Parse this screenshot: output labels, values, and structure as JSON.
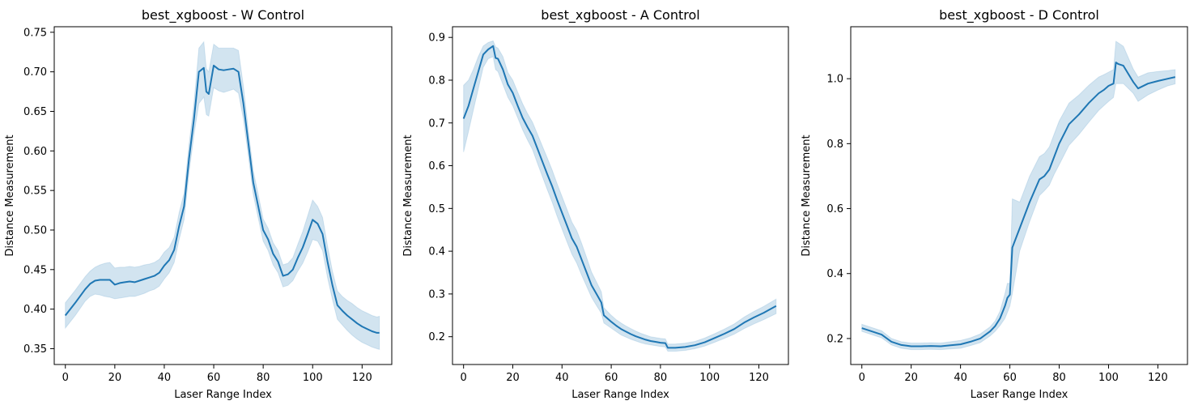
{
  "colors": {
    "line": "#1f77b4",
    "band": "#1f77b4"
  },
  "chart_data": [
    {
      "type": "line",
      "title": "best_xgboost - W Control",
      "xlabel": "Laser Range Index",
      "ylabel": "Distance Measurement",
      "xlim": [
        -4.5,
        132
      ],
      "ylim": [
        0.33,
        0.757
      ],
      "xticks": [
        0,
        20,
        40,
        60,
        80,
        100,
        120
      ],
      "yticks": [
        0.35,
        0.4,
        0.45,
        0.5,
        0.55,
        0.6,
        0.65,
        0.7,
        0.75
      ],
      "ytick_labels": [
        "0.35",
        "0.40",
        "0.45",
        "0.50",
        "0.55",
        "0.60",
        "0.65",
        "0.70",
        "0.75"
      ],
      "series": [
        {
          "x": [
            0,
            4,
            8,
            10,
            12,
            14,
            16,
            18,
            20,
            22,
            24,
            26,
            28,
            30,
            32,
            34,
            36,
            38,
            40,
            42,
            44,
            46,
            48,
            50,
            52,
            54,
            56,
            57,
            58,
            60,
            62,
            64,
            66,
            68,
            70,
            72,
            74,
            76,
            78,
            80,
            82,
            84,
            86,
            88,
            90,
            92,
            94,
            96,
            98,
            100,
            102,
            104,
            106,
            108,
            110,
            112,
            114,
            116,
            118,
            120,
            122,
            124,
            126,
            127
          ],
          "y": [
            0.392,
            0.408,
            0.425,
            0.432,
            0.436,
            0.437,
            0.437,
            0.437,
            0.431,
            0.433,
            0.434,
            0.435,
            0.434,
            0.436,
            0.438,
            0.44,
            0.442,
            0.446,
            0.455,
            0.462,
            0.475,
            0.505,
            0.53,
            0.59,
            0.64,
            0.7,
            0.705,
            0.675,
            0.672,
            0.708,
            0.703,
            0.702,
            0.703,
            0.704,
            0.7,
            0.66,
            0.61,
            0.56,
            0.53,
            0.5,
            0.488,
            0.47,
            0.46,
            0.442,
            0.444,
            0.45,
            0.465,
            0.478,
            0.495,
            0.513,
            0.508,
            0.495,
            0.46,
            0.43,
            0.405,
            0.398,
            0.392,
            0.387,
            0.382,
            0.378,
            0.375,
            0.372,
            0.37,
            0.37
          ],
          "lower": [
            0.376,
            0.392,
            0.41,
            0.416,
            0.419,
            0.418,
            0.416,
            0.415,
            0.413,
            0.414,
            0.415,
            0.416,
            0.416,
            0.418,
            0.42,
            0.423,
            0.425,
            0.429,
            0.438,
            0.446,
            0.459,
            0.488,
            0.513,
            0.572,
            0.62,
            0.66,
            0.668,
            0.646,
            0.644,
            0.68,
            0.676,
            0.674,
            0.676,
            0.678,
            0.673,
            0.64,
            0.594,
            0.545,
            0.515,
            0.486,
            0.474,
            0.456,
            0.446,
            0.428,
            0.43,
            0.436,
            0.448,
            0.458,
            0.472,
            0.488,
            0.486,
            0.474,
            0.44,
            0.412,
            0.387,
            0.38,
            0.373,
            0.367,
            0.362,
            0.358,
            0.355,
            0.352,
            0.35,
            0.349
          ],
          "upper": [
            0.408,
            0.424,
            0.441,
            0.448,
            0.453,
            0.456,
            0.458,
            0.459,
            0.452,
            0.453,
            0.453,
            0.454,
            0.453,
            0.454,
            0.456,
            0.457,
            0.459,
            0.463,
            0.472,
            0.478,
            0.491,
            0.522,
            0.547,
            0.608,
            0.66,
            0.73,
            0.738,
            0.704,
            0.7,
            0.735,
            0.73,
            0.73,
            0.73,
            0.73,
            0.727,
            0.682,
            0.626,
            0.575,
            0.545,
            0.514,
            0.502,
            0.484,
            0.474,
            0.456,
            0.458,
            0.465,
            0.482,
            0.498,
            0.518,
            0.538,
            0.53,
            0.516,
            0.48,
            0.448,
            0.423,
            0.416,
            0.411,
            0.407,
            0.402,
            0.398,
            0.395,
            0.392,
            0.39,
            0.391
          ]
        }
      ]
    },
    {
      "type": "line",
      "title": "best_xgboost - A Control",
      "xlabel": "Laser Range Index",
      "ylabel": "Distance Measurement",
      "xlim": [
        -4.5,
        132
      ],
      "ylim": [
        0.135,
        0.925
      ],
      "xticks": [
        0,
        20,
        40,
        60,
        80,
        100,
        120
      ],
      "yticks": [
        0.2,
        0.3,
        0.4,
        0.5,
        0.6,
        0.7,
        0.8,
        0.9
      ],
      "ytick_labels": [
        "0.2",
        "0.3",
        "0.4",
        "0.5",
        "0.6",
        "0.7",
        "0.8",
        "0.9"
      ],
      "series": [
        {
          "x": [
            0,
            2,
            4,
            6,
            8,
            10,
            12,
            13,
            14,
            16,
            18,
            20,
            22,
            24,
            26,
            28,
            30,
            32,
            34,
            36,
            38,
            40,
            42,
            44,
            46,
            48,
            50,
            52,
            54,
            56,
            57,
            58,
            60,
            62,
            64,
            66,
            68,
            70,
            72,
            74,
            76,
            78,
            80,
            82,
            83,
            86,
            90,
            94,
            98,
            102,
            106,
            110,
            114,
            118,
            122,
            127
          ],
          "y": [
            0.71,
            0.74,
            0.78,
            0.82,
            0.86,
            0.872,
            0.88,
            0.852,
            0.85,
            0.825,
            0.79,
            0.77,
            0.74,
            0.712,
            0.69,
            0.67,
            0.64,
            0.61,
            0.58,
            0.552,
            0.52,
            0.49,
            0.46,
            0.43,
            0.41,
            0.38,
            0.35,
            0.32,
            0.3,
            0.28,
            0.25,
            0.245,
            0.235,
            0.226,
            0.218,
            0.212,
            0.206,
            0.201,
            0.197,
            0.193,
            0.19,
            0.188,
            0.186,
            0.185,
            0.174,
            0.174,
            0.176,
            0.18,
            0.187,
            0.197,
            0.207,
            0.218,
            0.233,
            0.245,
            0.256,
            0.272
          ],
          "lower": [
            0.632,
            0.68,
            0.73,
            0.78,
            0.83,
            0.85,
            0.855,
            0.825,
            0.82,
            0.79,
            0.76,
            0.74,
            0.712,
            0.684,
            0.66,
            0.638,
            0.606,
            0.575,
            0.544,
            0.515,
            0.482,
            0.452,
            0.422,
            0.393,
            0.372,
            0.344,
            0.318,
            0.292,
            0.273,
            0.255,
            0.232,
            0.228,
            0.22,
            0.212,
            0.204,
            0.199,
            0.194,
            0.19,
            0.186,
            0.183,
            0.181,
            0.179,
            0.177,
            0.176,
            0.166,
            0.166,
            0.168,
            0.172,
            0.178,
            0.187,
            0.196,
            0.206,
            0.219,
            0.23,
            0.24,
            0.254
          ],
          "upper": [
            0.788,
            0.8,
            0.825,
            0.855,
            0.88,
            0.888,
            0.892,
            0.878,
            0.875,
            0.855,
            0.818,
            0.8,
            0.772,
            0.745,
            0.722,
            0.702,
            0.674,
            0.646,
            0.618,
            0.59,
            0.558,
            0.528,
            0.498,
            0.468,
            0.448,
            0.418,
            0.385,
            0.351,
            0.328,
            0.305,
            0.268,
            0.262,
            0.25,
            0.24,
            0.232,
            0.225,
            0.219,
            0.213,
            0.208,
            0.204,
            0.2,
            0.198,
            0.196,
            0.195,
            0.183,
            0.183,
            0.185,
            0.189,
            0.197,
            0.207,
            0.218,
            0.23,
            0.246,
            0.259,
            0.271,
            0.288
          ]
        }
      ]
    },
    {
      "type": "line",
      "title": "best_xgboost - D Control",
      "xlabel": "Laser Range Index",
      "ylabel": "Distance Measurement",
      "xlim": [
        -4.5,
        132
      ],
      "ylim": [
        0.12,
        1.16
      ],
      "xticks": [
        0,
        20,
        40,
        60,
        80,
        100,
        120
      ],
      "yticks": [
        0.2,
        0.4,
        0.6,
        0.8,
        1.0
      ],
      "ytick_labels": [
        "0.2",
        "0.4",
        "0.6",
        "0.8",
        "1.0"
      ],
      "series": [
        {
          "x": [
            0,
            4,
            8,
            12,
            16,
            20,
            24,
            28,
            32,
            36,
            40,
            44,
            48,
            52,
            54,
            56,
            58,
            59,
            60,
            61,
            64,
            68,
            72,
            74,
            76,
            78,
            80,
            84,
            88,
            92,
            96,
            98,
            100,
            102,
            103,
            104,
            106,
            110,
            112,
            116,
            120,
            124,
            127
          ],
          "y": [
            0.232,
            0.222,
            0.212,
            0.19,
            0.18,
            0.176,
            0.176,
            0.177,
            0.176,
            0.179,
            0.182,
            0.19,
            0.2,
            0.222,
            0.238,
            0.262,
            0.3,
            0.325,
            0.335,
            0.48,
            0.54,
            0.62,
            0.69,
            0.7,
            0.72,
            0.76,
            0.8,
            0.86,
            0.89,
            0.925,
            0.955,
            0.965,
            0.978,
            0.985,
            1.05,
            1.045,
            1.04,
            0.99,
            0.97,
            0.985,
            0.993,
            1.0,
            1.005
          ],
          "lower": [
            0.222,
            0.212,
            0.202,
            0.18,
            0.17,
            0.166,
            0.166,
            0.167,
            0.166,
            0.168,
            0.17,
            0.178,
            0.187,
            0.208,
            0.222,
            0.24,
            0.262,
            0.28,
            0.3,
            0.338,
            0.47,
            0.56,
            0.64,
            0.655,
            0.672,
            0.706,
            0.735,
            0.795,
            0.828,
            0.866,
            0.902,
            0.916,
            0.93,
            0.942,
            0.985,
            0.985,
            0.985,
            0.955,
            0.93,
            0.95,
            0.965,
            0.978,
            0.984
          ],
          "upper": [
            0.244,
            0.234,
            0.224,
            0.2,
            0.19,
            0.186,
            0.186,
            0.187,
            0.186,
            0.19,
            0.194,
            0.202,
            0.214,
            0.236,
            0.254,
            0.284,
            0.338,
            0.37,
            0.37,
            0.63,
            0.62,
            0.7,
            0.76,
            0.77,
            0.79,
            0.83,
            0.87,
            0.925,
            0.95,
            0.98,
            1.005,
            1.012,
            1.02,
            1.028,
            1.115,
            1.11,
            1.1,
            1.03,
            1.005,
            1.018,
            1.022,
            1.025,
            1.028
          ]
        }
      ]
    }
  ]
}
